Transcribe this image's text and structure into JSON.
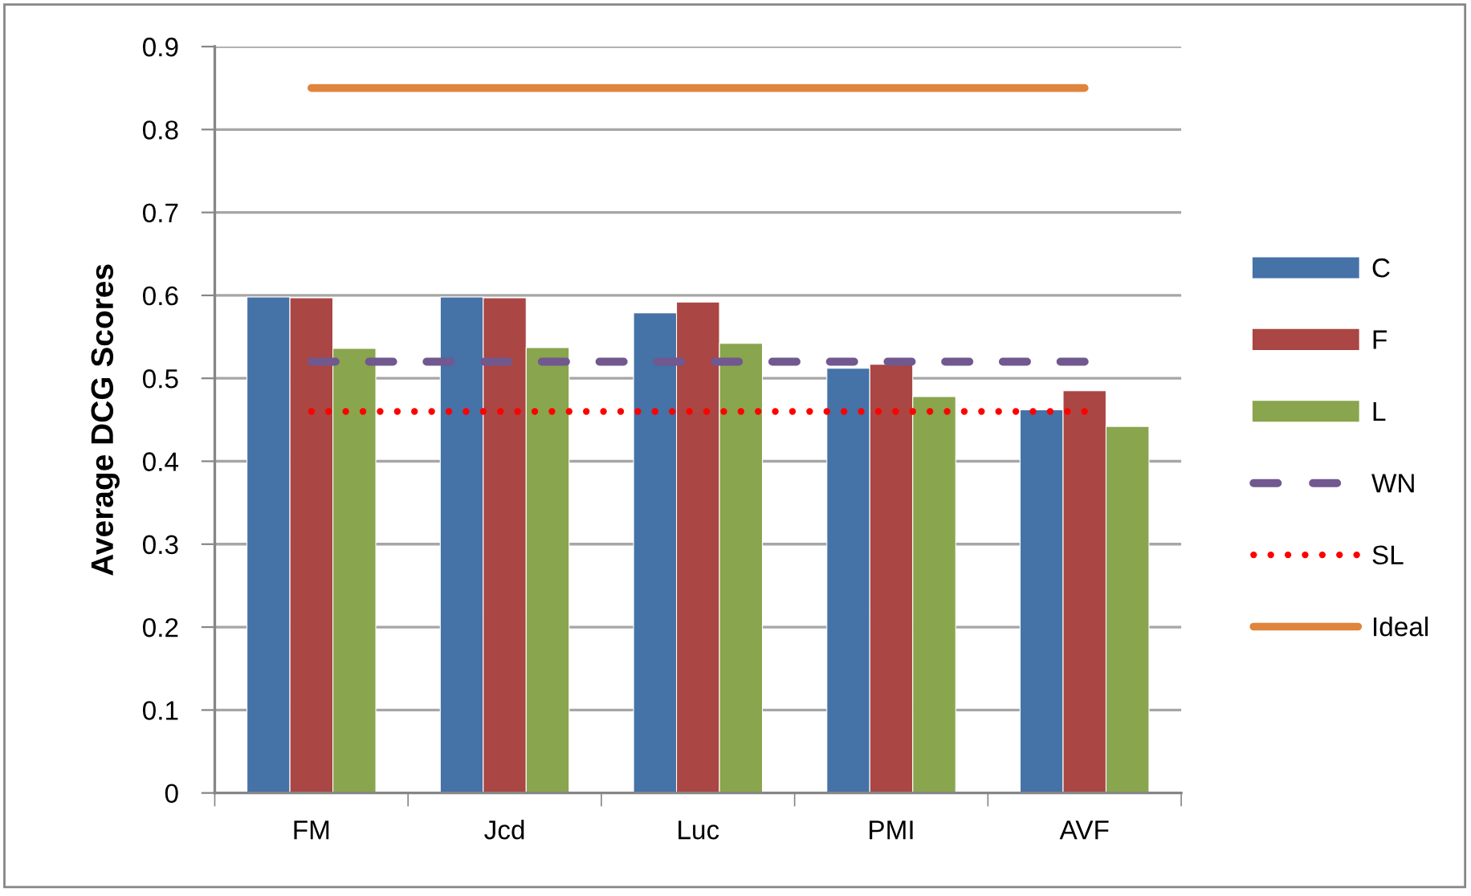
{
  "chart_data": {
    "type": "bar",
    "ylabel": "Average DCG Scores",
    "categories": [
      "FM",
      "Jcd",
      "Luc",
      "PMI",
      "AVF"
    ],
    "series": [
      {
        "name": "C",
        "color": "#4572a7",
        "values": [
          0.598,
          0.598,
          0.579,
          0.512,
          0.462
        ]
      },
      {
        "name": "F",
        "color": "#aa4643",
        "values": [
          0.597,
          0.597,
          0.592,
          0.517,
          0.485
        ]
      },
      {
        "name": "L",
        "color": "#89a54e",
        "values": [
          0.536,
          0.537,
          0.542,
          0.478,
          0.442
        ]
      },
      {
        "name": "WN",
        "type": "line",
        "line_style": "dashed",
        "color": "#71588f",
        "values": [
          0.52,
          0.52,
          0.52,
          0.52,
          0.52
        ]
      },
      {
        "name": "SL",
        "type": "line",
        "line_style": "dotted",
        "color": "#ff0000",
        "values": [
          0.46,
          0.46,
          0.46,
          0.46,
          0.46
        ]
      },
      {
        "name": "Ideal",
        "type": "line",
        "line_style": "solid",
        "color": "#e0843d",
        "values": [
          0.85,
          0.85,
          0.85,
          0.85,
          0.85
        ]
      }
    ],
    "ylim": [
      0,
      0.9
    ],
    "yticks": [
      0,
      0.1,
      0.2,
      0.3,
      0.4,
      0.5,
      0.6,
      0.7,
      0.8,
      0.9
    ],
    "grid": "y",
    "legend": "right",
    "marker": "none"
  }
}
